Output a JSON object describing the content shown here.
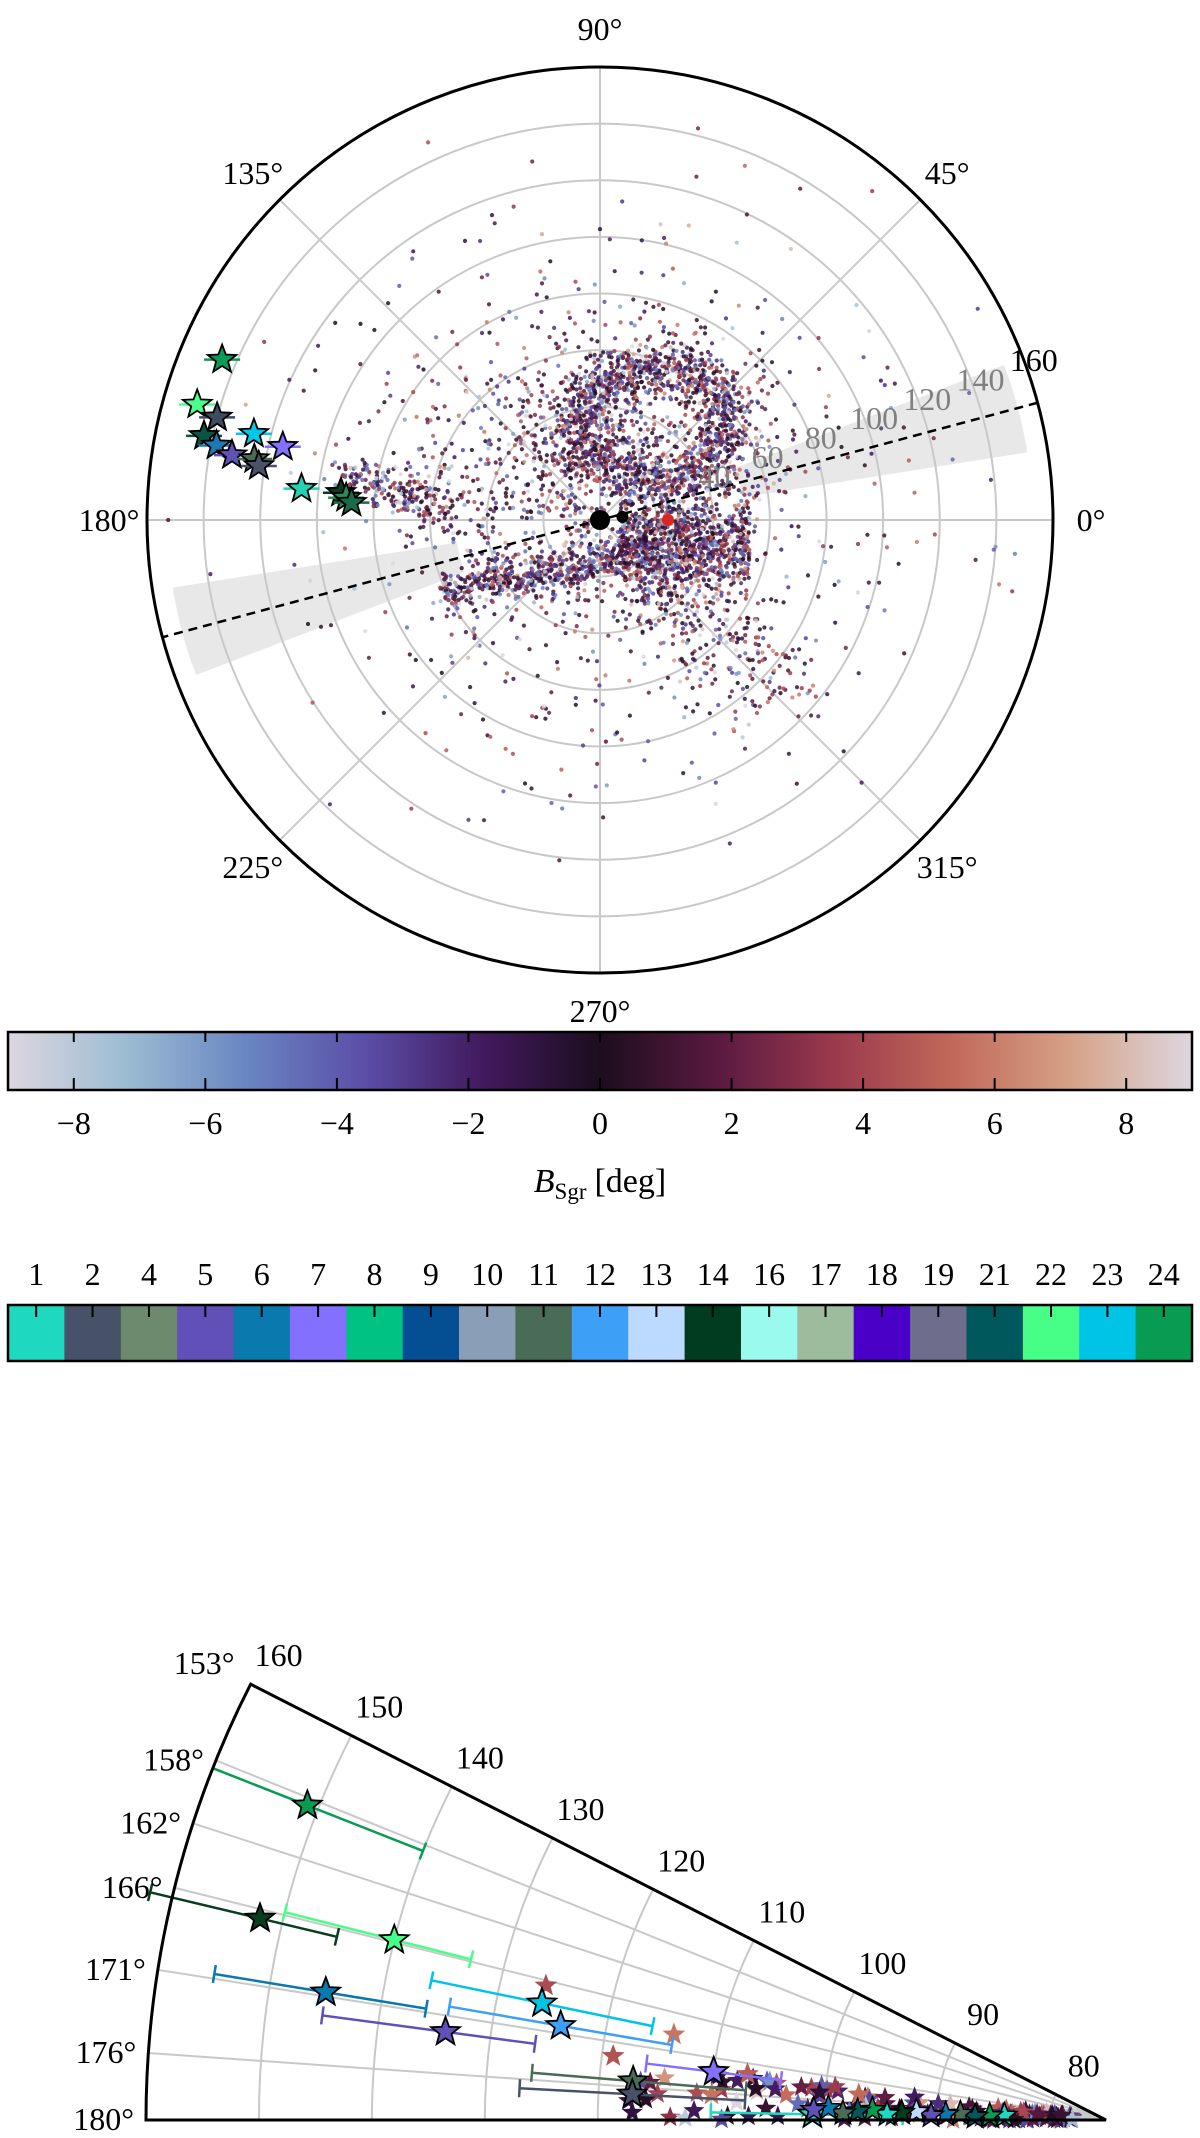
{
  "chart_data": [
    {
      "type": "scatter",
      "subtype": "polar",
      "theta_ticks": [
        "0°",
        "45°",
        "90°",
        "135°",
        "180°",
        "225°",
        "270°",
        "315°"
      ],
      "r_ticks": [
        "40",
        "60",
        "80",
        "100",
        "120",
        "140",
        "160"
      ],
      "r_range": [
        0,
        160
      ],
      "grid": true,
      "highlight_wedge": {
        "theta_center_deg": 15,
        "half_width_deg": 6,
        "color": "#e8e8e8"
      },
      "dashed_line_theta_deg": 15,
      "markers": [
        {
          "label": "",
          "theta_deg": 0,
          "r": 0,
          "color": "#000000"
        },
        {
          "label": "",
          "theta_deg": 8,
          "r": 8,
          "color": "#000000"
        },
        {
          "label": "",
          "theta_deg": 0,
          "r": 24,
          "color": "#d62728"
        }
      ],
      "star_clusters": [
        {
          "theta_deg": 157,
          "r": 145,
          "color": "#0b9b57"
        },
        {
          "theta_deg": 164,
          "r": 148,
          "color": "#4bff8f"
        },
        {
          "theta_deg": 165,
          "r": 140,
          "color": "#3e4c5f"
        },
        {
          "theta_deg": 166,
          "r": 126,
          "color": "#00c8e6"
        },
        {
          "theta_deg": 167,
          "r": 115,
          "color": "#8470ff"
        },
        {
          "theta_deg": 168,
          "r": 143,
          "color": "#0b5345"
        },
        {
          "theta_deg": 169,
          "r": 138,
          "color": "#1f78b4"
        },
        {
          "theta_deg": 170,
          "r": 132,
          "color": "#6150b8"
        },
        {
          "theta_deg": 170,
          "r": 124,
          "color": "#4a6b55"
        },
        {
          "theta_deg": 171,
          "r": 122,
          "color": "#4a5468"
        },
        {
          "theta_deg": 174,
          "r": 106,
          "color": "#22d2b0"
        },
        {
          "theta_deg": 174,
          "r": 92,
          "color": "#0a3d1f"
        },
        {
          "theta_deg": 175,
          "r": 90,
          "color": "#2e8b57"
        },
        {
          "theta_deg": 176,
          "r": 88,
          "color": "#1a6b4a"
        }
      ]
    },
    {
      "type": "colorbar",
      "xlabel": "B_Sgr [deg]",
      "xlabel_main": "B",
      "xlabel_sub": "Sgr",
      "xlabel_unit": "[deg]",
      "range": [
        -9,
        9
      ],
      "tick_values": [
        -8,
        -6,
        -4,
        -2,
        0,
        2,
        4,
        6,
        8
      ],
      "tick_labels": [
        "−8",
        "−6",
        "−4",
        "−2",
        "0",
        "2",
        "4",
        "6",
        "8"
      ],
      "colormap_stops": [
        "#ddd6df",
        "#9cbcd2",
        "#6a86c2",
        "#5b4fa8",
        "#421a5f",
        "#1c0d1e",
        "#5a1a40",
        "#9c3a4e",
        "#c26a59",
        "#d6a389",
        "#ddd6df"
      ]
    },
    {
      "type": "colorbar",
      "categories": [
        "1",
        "2",
        "4",
        "5",
        "6",
        "7",
        "8",
        "9",
        "10",
        "11",
        "12",
        "13",
        "14",
        "16",
        "17",
        "18",
        "19",
        "21",
        "22",
        "23",
        "24"
      ],
      "colors": [
        "#1ed9c0",
        "#475269",
        "#6e8a6e",
        "#6150b8",
        "#0a79ae",
        "#8470ff",
        "#00c282",
        "#044f94",
        "#8a9fb7",
        "#4a6b55",
        "#3d9ff5",
        "#bcd9ff",
        "#003c1d",
        "#9afaed",
        "#9dbb9d",
        "#4b00c8",
        "#6e6d8b",
        "#00585d",
        "#47ff87",
        "#00c4e6",
        "#089c52"
      ]
    },
    {
      "type": "scatter",
      "subtype": "polar-wedge",
      "theta_range_deg": [
        153,
        180
      ],
      "theta_ticks": [
        "153°",
        "158°",
        "162°",
        "166°",
        "171°",
        "176°",
        "180°"
      ],
      "r_ticks": [
        "80",
        "90",
        "100",
        "110",
        "120",
        "130",
        "140",
        "150",
        "160"
      ],
      "r_range": [
        75,
        160
      ],
      "grid": true,
      "stars": [
        {
          "id": "24",
          "theta_deg": 158.5,
          "r": 151,
          "err": [
            140,
            160
          ],
          "color": "#089c52"
        },
        {
          "id": "22",
          "theta_deg": 165.8,
          "r": 140,
          "err": [
            133,
            150
          ],
          "color": "#47ff87"
        },
        {
          "id": "21",
          "theta_deg": 166.6,
          "r": 152,
          "err": [
            145,
            162
          ],
          "color": "#0a3d1f"
        },
        {
          "id": "23",
          "theta_deg": 168.3,
          "r": 126,
          "err": [
            116,
            136
          ],
          "color": "#00c4e6"
        },
        {
          "id": "12",
          "theta_deg": 170.2,
          "r": 124,
          "err": [
            114,
            134
          ],
          "color": "#3d9ff5"
        },
        {
          "id": "6",
          "theta_deg": 170.7,
          "r": 145,
          "err": [
            136,
            155
          ],
          "color": "#0a79ae"
        },
        {
          "id": "5",
          "theta_deg": 172.4,
          "r": 134,
          "err": [
            126,
            145
          ],
          "color": "#6150b8"
        },
        {
          "id": "11",
          "theta_deg": 175.3,
          "r": 117,
          "err": [
            107,
            126
          ],
          "color": "#4a6b55"
        },
        {
          "id": "2",
          "theta_deg": 176.9,
          "r": 117,
          "err": [
            107,
            127
          ],
          "color": "#475269"
        },
        {
          "id": "7",
          "theta_deg": 173.0,
          "r": 110,
          "err": [
            104,
            116
          ],
          "color": "#8470ff"
        },
        {
          "id": "1",
          "theta_deg": 178.9,
          "r": 101,
          "err": [
            93,
            110
          ],
          "color": "#1ed9c0"
        }
      ]
    }
  ]
}
